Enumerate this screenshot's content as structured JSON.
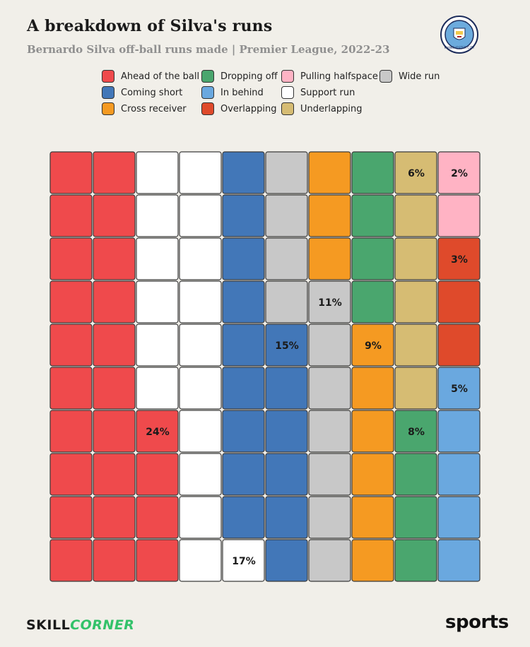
{
  "title": "A breakdown of Silva's runs",
  "subtitle": "Bernardo Silva off-ball runs made | Premier League, 2022-23",
  "crest": {
    "icon": "manchester-city-crest-icon",
    "text": "MANCHESTER CITY"
  },
  "footer": {
    "brand_left_a": "SKILL",
    "brand_left_b": "CORNER",
    "brand_right": "sports"
  },
  "chart_data": {
    "type": "waffle",
    "title": "A breakdown of Silva's runs",
    "subtitle": "Bernardo Silva off-ball runs made | Premier League, 2022-23",
    "grid": {
      "rows": 10,
      "columns": 10,
      "order": "column-major, bottom-to-top, left-to-right"
    },
    "legend_placement": "top",
    "categories": [
      {
        "name": "Ahead of the ball",
        "value": 24,
        "label": "24%",
        "color": "#ef4a4c"
      },
      {
        "name": "Support run",
        "value": 17,
        "label": "17%",
        "color": "#ffffff"
      },
      {
        "name": "Coming short",
        "value": 15,
        "label": "15%",
        "color": "#4277b8"
      },
      {
        "name": "Wide run",
        "value": 11,
        "label": "11%",
        "color": "#c8c8c8"
      },
      {
        "name": "Cross receiver",
        "value": 9,
        "label": "9%",
        "color": "#f59a22"
      },
      {
        "name": "Dropping off",
        "value": 8,
        "label": "8%",
        "color": "#4aa66e"
      },
      {
        "name": "Underlapping",
        "value": 6,
        "label": "6%",
        "color": "#d6bc73"
      },
      {
        "name": "In behind",
        "value": 5,
        "label": "5%",
        "color": "#6aa8df"
      },
      {
        "name": "Overlapping",
        "value": 3,
        "label": "3%",
        "color": "#df4a2b"
      },
      {
        "name": "Pulling halfspace",
        "value": 2,
        "label": "2%",
        "color": "#ffb3c4"
      }
    ],
    "legend_order": [
      "Ahead of the ball",
      "Dropping off",
      "Pulling halfspace",
      "Wide run",
      "Coming short",
      "In behind",
      "Support run",
      "Cross receiver",
      "Overlapping",
      "Underlapping"
    ],
    "label_cells": [
      {
        "name": "Ahead of the ball",
        "row": 7,
        "col": 3
      },
      {
        "name": "Support run",
        "row": 10,
        "col": 5
      },
      {
        "name": "Coming short",
        "row": 5,
        "col": 6
      },
      {
        "name": "Wide run",
        "row": 4,
        "col": 7
      },
      {
        "name": "Cross receiver",
        "row": 5,
        "col": 8
      },
      {
        "name": "Dropping off",
        "row": 7,
        "col": 9
      },
      {
        "name": "Underlapping",
        "row": 1,
        "col": 9
      },
      {
        "name": "In behind",
        "row": 6,
        "col": 10
      },
      {
        "name": "Overlapping",
        "row": 3,
        "col": 10
      },
      {
        "name": "Pulling halfspace",
        "row": 1,
        "col": 10
      }
    ]
  }
}
